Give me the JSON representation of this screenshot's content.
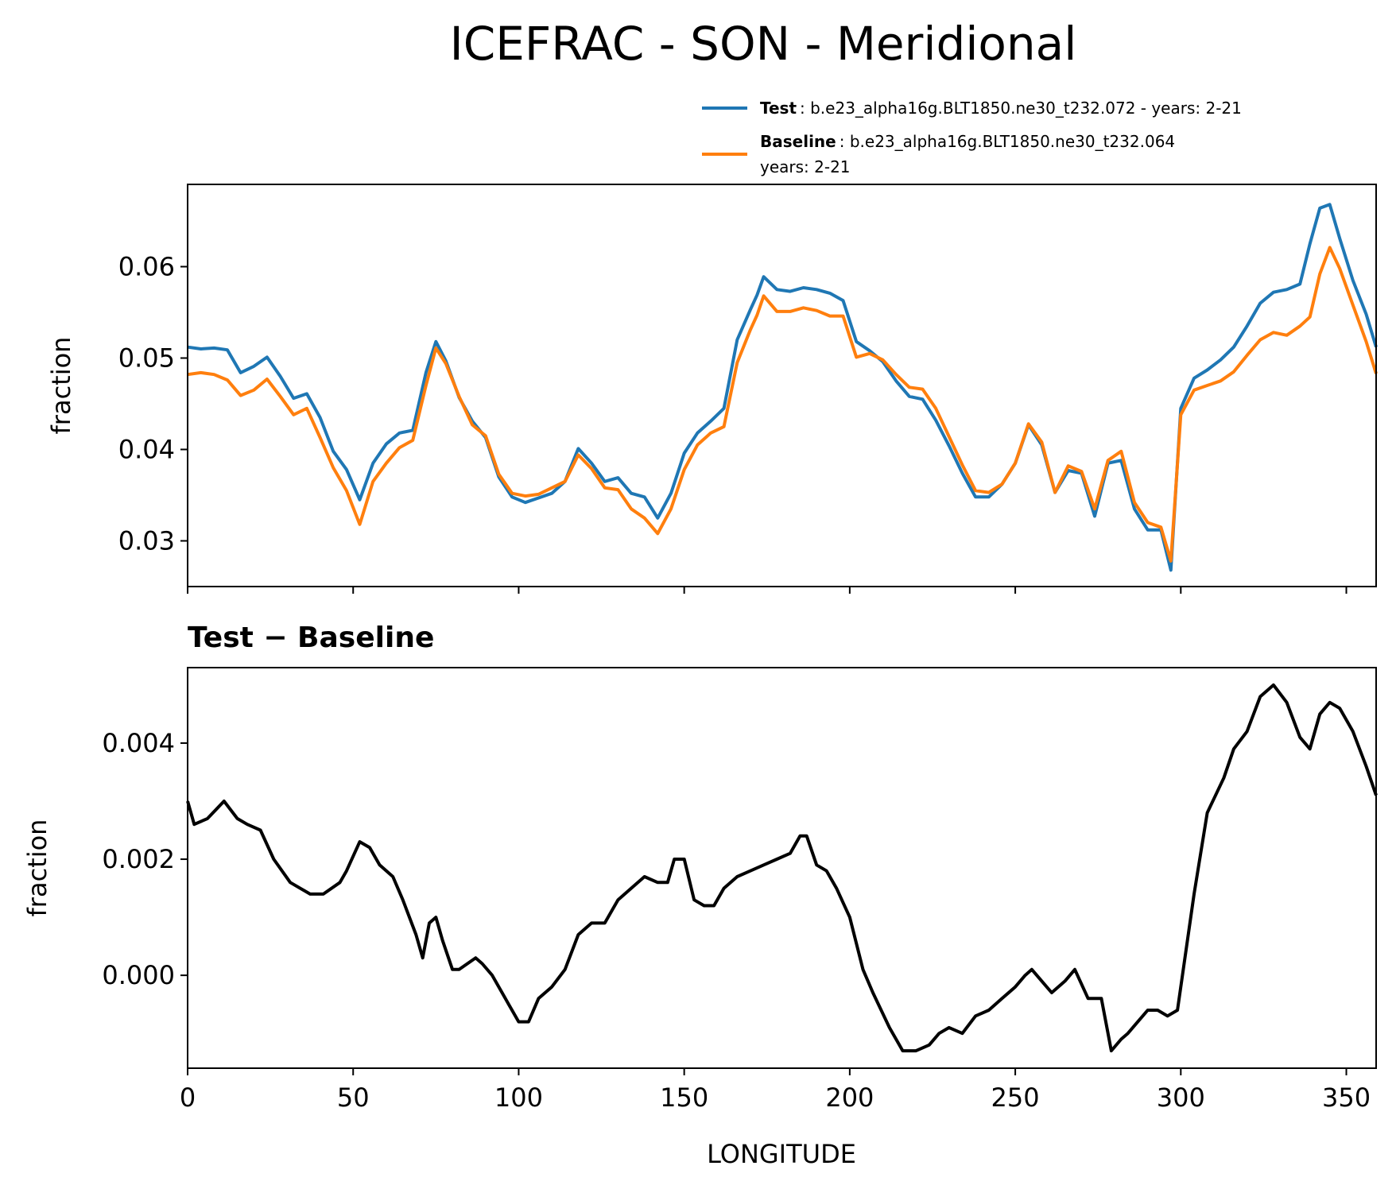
{
  "title": "ICEFRAC - SON - Meridional",
  "colors": {
    "test": "#1f77b4",
    "baseline": "#ff7f0e",
    "diff": "#000000"
  },
  "legend": {
    "test": {
      "label": "Test",
      "desc": ": b.e23_alpha16g.BLT1850.ne30_t232.072 - years: 2-21"
    },
    "baseline": {
      "label": "Baseline",
      "desc": ": b.e23_alpha16g.BLT1850.ne30_t232.064",
      "desc2": "years: 2-21"
    }
  },
  "chart_data": [
    {
      "type": "line",
      "xlabel": "",
      "ylabel": "fraction",
      "xlim": [
        0,
        359
      ],
      "ylim": [
        0.025,
        0.069
      ],
      "yticks": [
        "0.03",
        "0.04",
        "0.05",
        "0.06"
      ],
      "ytick_values": [
        0.03,
        0.04,
        0.05,
        0.06
      ],
      "xtick_values": [
        0,
        50,
        100,
        150,
        200,
        250,
        300,
        350
      ],
      "legend_position": "top-right, above plot",
      "series": [
        {
          "name": "Test",
          "x": [
            0,
            4,
            8,
            12,
            16,
            20,
            24,
            28,
            32,
            36,
            40,
            44,
            48,
            52,
            56,
            60,
            64,
            68,
            72,
            75,
            78,
            82,
            86,
            90,
            94,
            98,
            102,
            106,
            110,
            114,
            118,
            122,
            126,
            130,
            134,
            138,
            142,
            146,
            150,
            154,
            158,
            162,
            166,
            170,
            172,
            174,
            178,
            182,
            186,
            190,
            194,
            198,
            202,
            206,
            210,
            214,
            218,
            222,
            226,
            230,
            234,
            238,
            242,
            246,
            250,
            254,
            258,
            262,
            266,
            270,
            274,
            278,
            282,
            286,
            290,
            294,
            297,
            300,
            304,
            308,
            312,
            316,
            320,
            324,
            328,
            332,
            336,
            339,
            342,
            345,
            348,
            352,
            356,
            359
          ],
          "y": [
            0.0512,
            0.051,
            0.0511,
            0.0509,
            0.0484,
            0.0491,
            0.0501,
            0.048,
            0.0456,
            0.0461,
            0.0435,
            0.0398,
            0.0378,
            0.0345,
            0.0385,
            0.0406,
            0.0418,
            0.0421,
            0.0484,
            0.0518,
            0.0497,
            0.0457,
            0.0431,
            0.0413,
            0.037,
            0.0348,
            0.0342,
            0.0347,
            0.0352,
            0.0365,
            0.0401,
            0.0385,
            0.0365,
            0.0369,
            0.0352,
            0.0348,
            0.0325,
            0.0352,
            0.0396,
            0.0418,
            0.0431,
            0.0445,
            0.052,
            0.0553,
            0.0569,
            0.0589,
            0.0575,
            0.0573,
            0.0577,
            0.0575,
            0.0571,
            0.0563,
            0.0518,
            0.0508,
            0.0496,
            0.0475,
            0.0458,
            0.0455,
            0.0432,
            0.0404,
            0.0374,
            0.0348,
            0.0348,
            0.0362,
            0.0385,
            0.0427,
            0.0405,
            0.0353,
            0.0377,
            0.0374,
            0.0327,
            0.0385,
            0.0388,
            0.0335,
            0.0312,
            0.0312,
            0.0268,
            0.0445,
            0.0478,
            0.0487,
            0.0498,
            0.0512,
            0.0535,
            0.056,
            0.0572,
            0.0575,
            0.0581,
            0.0625,
            0.0664,
            0.0668,
            0.0631,
            0.0585,
            0.0548,
            0.0512
          ]
        },
        {
          "name": "Baseline",
          "x": [
            0,
            4,
            8,
            12,
            16,
            20,
            24,
            28,
            32,
            36,
            40,
            44,
            48,
            52,
            56,
            60,
            64,
            68,
            72,
            75,
            78,
            82,
            86,
            90,
            94,
            98,
            102,
            106,
            110,
            114,
            118,
            122,
            126,
            130,
            134,
            138,
            142,
            146,
            150,
            154,
            158,
            162,
            166,
            170,
            172,
            174,
            178,
            182,
            186,
            190,
            194,
            198,
            202,
            206,
            210,
            214,
            218,
            222,
            226,
            230,
            234,
            238,
            242,
            246,
            250,
            254,
            258,
            262,
            266,
            270,
            274,
            278,
            282,
            286,
            290,
            294,
            297,
            300,
            304,
            308,
            312,
            316,
            320,
            324,
            328,
            332,
            336,
            339,
            342,
            345,
            348,
            352,
            356,
            359
          ],
          "y": [
            0.0482,
            0.0484,
            0.0482,
            0.0476,
            0.0459,
            0.0465,
            0.0477,
            0.0458,
            0.0438,
            0.0445,
            0.0413,
            0.038,
            0.0355,
            0.0318,
            0.0365,
            0.0385,
            0.0402,
            0.041,
            0.047,
            0.0511,
            0.0494,
            0.0458,
            0.0427,
            0.0415,
            0.0373,
            0.0352,
            0.0349,
            0.0351,
            0.0358,
            0.0365,
            0.0394,
            0.0379,
            0.0358,
            0.0356,
            0.0335,
            0.0325,
            0.0308,
            0.0335,
            0.0378,
            0.0405,
            0.0418,
            0.0425,
            0.0495,
            0.0531,
            0.0547,
            0.0568,
            0.0551,
            0.0551,
            0.0555,
            0.0552,
            0.0546,
            0.0546,
            0.0501,
            0.0505,
            0.0498,
            0.0482,
            0.0468,
            0.0466,
            0.0445,
            0.0414,
            0.0383,
            0.0355,
            0.0353,
            0.0362,
            0.0385,
            0.0428,
            0.0408,
            0.0353,
            0.0382,
            0.0376,
            0.0335,
            0.0388,
            0.0398,
            0.0342,
            0.032,
            0.0315,
            0.0278,
            0.0438,
            0.0465,
            0.047,
            0.0475,
            0.0485,
            0.0503,
            0.052,
            0.0528,
            0.0525,
            0.0535,
            0.0545,
            0.0592,
            0.0621,
            0.0598,
            0.0558,
            0.0518,
            0.0483
          ]
        }
      ]
    },
    {
      "type": "line",
      "title": "Test − Baseline",
      "xlabel": "LONGITUDE",
      "ylabel": "fraction",
      "xlim": [
        0,
        359
      ],
      "ylim": [
        -0.0016,
        0.0053
      ],
      "yticks": [
        "0.000",
        "0.002",
        "0.004"
      ],
      "ytick_values": [
        0.0,
        0.002,
        0.004
      ],
      "xticks": [
        "0",
        "50",
        "100",
        "150",
        "200",
        "250",
        "300",
        "350"
      ],
      "xtick_values": [
        0,
        50,
        100,
        150,
        200,
        250,
        300,
        350
      ],
      "series": [
        {
          "x": [
            0,
            2,
            6,
            11,
            15,
            18,
            22,
            26,
            31,
            37,
            41,
            46,
            48,
            52,
            55,
            58,
            62,
            65,
            69,
            71,
            73,
            75,
            77,
            80,
            82,
            87,
            89,
            92,
            97,
            100,
            103,
            106,
            110,
            114,
            118,
            122,
            126,
            130,
            134,
            138,
            142,
            145,
            147,
            150,
            153,
            156,
            159,
            162,
            166,
            170,
            174,
            178,
            182,
            185,
            187,
            190,
            193,
            196,
            200,
            204,
            207,
            212,
            216,
            220,
            224,
            227,
            230,
            234,
            238,
            242,
            246,
            250,
            253,
            255,
            258,
            261,
            265,
            268,
            272,
            276,
            279,
            282,
            284,
            287,
            290,
            293,
            296,
            299,
            304,
            308,
            313,
            316,
            320,
            324,
            328,
            332,
            336,
            339,
            342,
            345,
            348,
            352,
            356,
            359
          ],
          "y": [
            0.003,
            0.0026,
            0.0027,
            0.003,
            0.0027,
            0.0026,
            0.0025,
            0.002,
            0.0016,
            0.0014,
            0.0014,
            0.0016,
            0.0018,
            0.0023,
            0.0022,
            0.0019,
            0.0017,
            0.0013,
            0.0007,
            0.0003,
            0.0009,
            0.001,
            0.0006,
            0.0001,
            0.0001,
            0.0003,
            0.0002,
            0.0,
            -0.0005,
            -0.0008,
            -0.0008,
            -0.0004,
            -0.0002,
            0.0001,
            0.0007,
            0.0009,
            0.0009,
            0.0013,
            0.0015,
            0.0017,
            0.0016,
            0.0016,
            0.002,
            0.002,
            0.0013,
            0.0012,
            0.0012,
            0.0015,
            0.0017,
            0.0018,
            0.0019,
            0.002,
            0.0021,
            0.0024,
            0.0024,
            0.0019,
            0.0018,
            0.0015,
            0.001,
            0.0001,
            -0.0003,
            -0.0009,
            -0.0013,
            -0.0013,
            -0.0012,
            -0.001,
            -0.0009,
            -0.001,
            -0.0007,
            -0.0006,
            -0.0004,
            -0.0002,
            0.0,
            0.0001,
            -0.0001,
            -0.0003,
            -0.0001,
            0.0001,
            -0.0004,
            -0.0004,
            -0.0013,
            -0.0011,
            -0.001,
            -0.0008,
            -0.0006,
            -0.0006,
            -0.0007,
            -0.0006,
            0.0014,
            0.0028,
            0.0034,
            0.0039,
            0.0042,
            0.0048,
            0.005,
            0.0047,
            0.0041,
            0.0039,
            0.0045,
            0.0047,
            0.0046,
            0.0042,
            0.0036,
            0.0031
          ]
        }
      ]
    }
  ]
}
